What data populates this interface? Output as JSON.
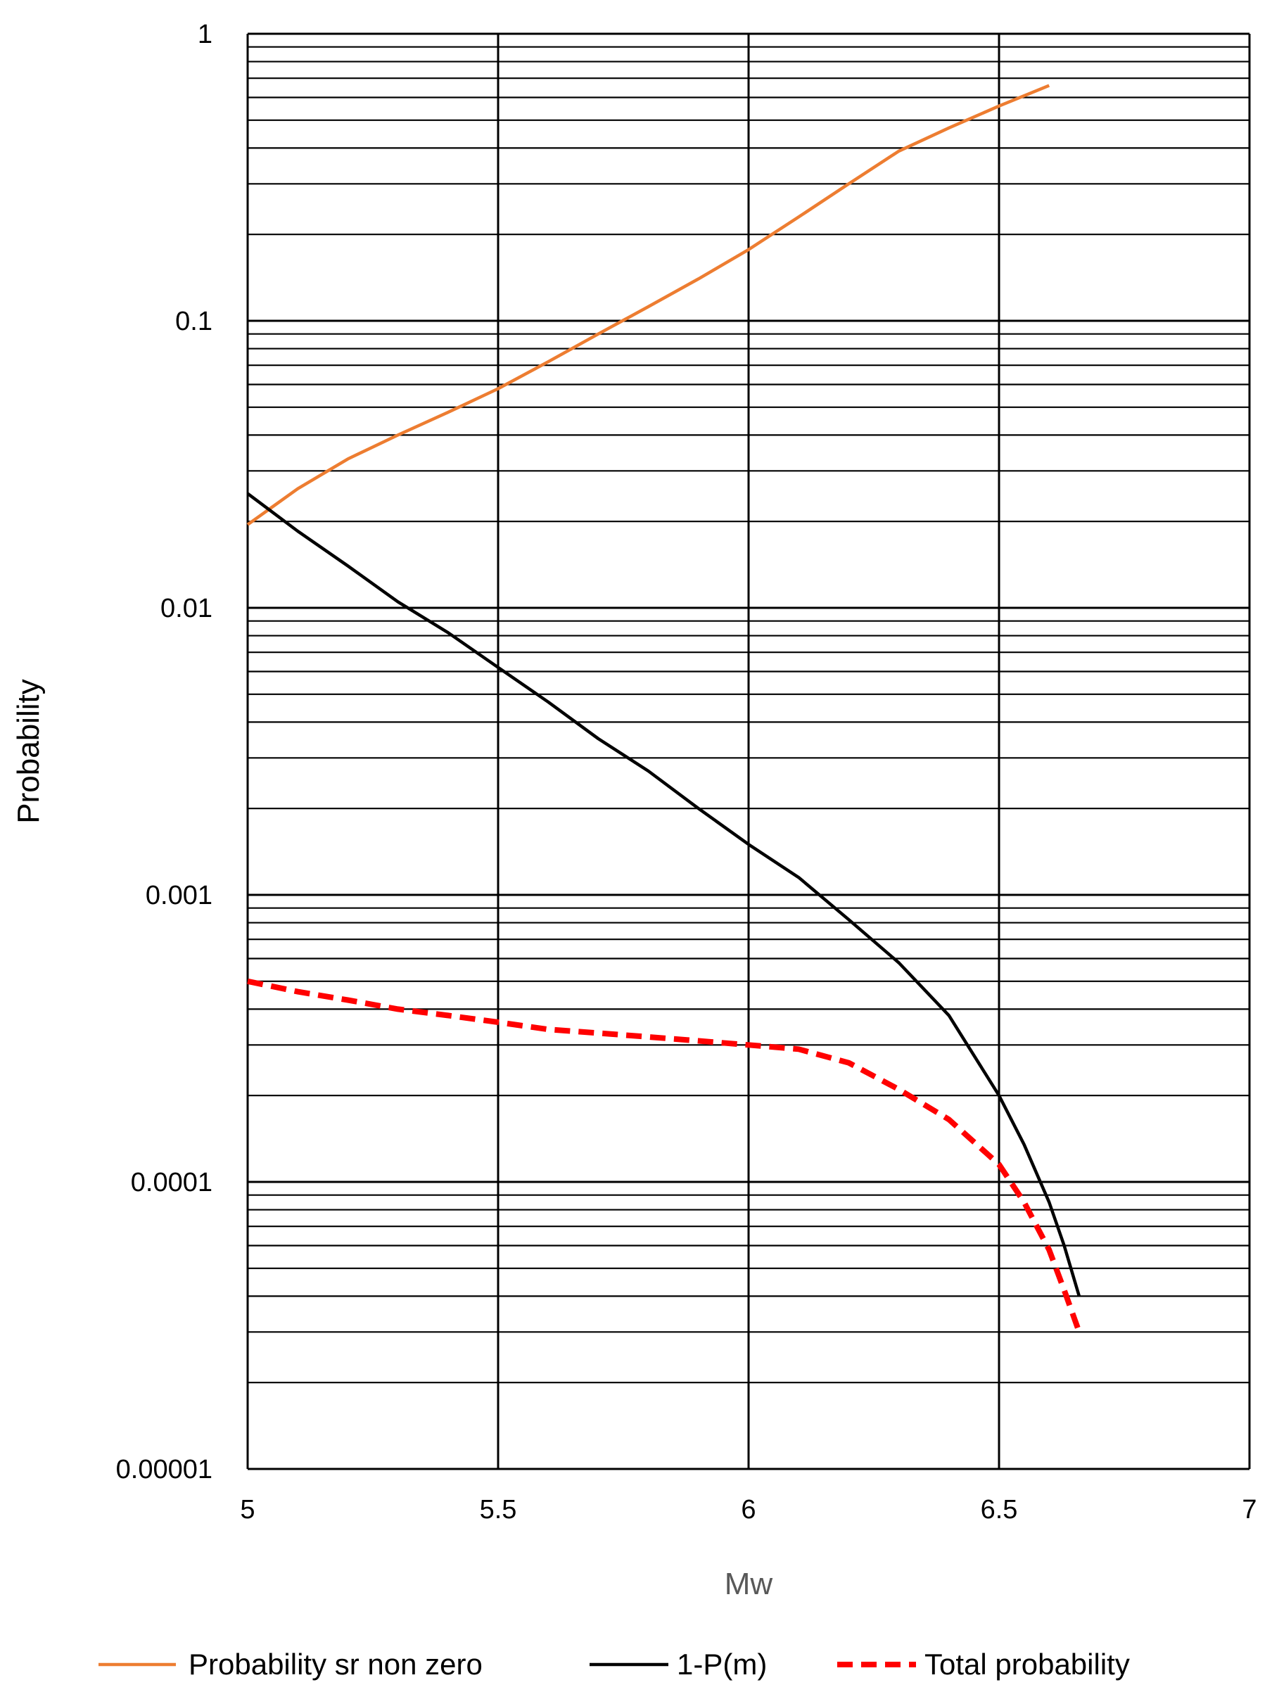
{
  "chart_data": {
    "type": "line",
    "xlabel": "Mw",
    "ylabel": "Probability",
    "xlim": [
      5,
      7
    ],
    "ylim": [
      1e-05,
      1
    ],
    "y_scale": "log",
    "x_ticks": [
      "5",
      "5.5",
      "6",
      "6.5",
      "7"
    ],
    "y_ticks": [
      "1",
      "0.1",
      "0.01",
      "0.001",
      "0.0001",
      "0.00001"
    ],
    "grid": true,
    "legend_position": "bottom",
    "colors": {
      "xlabel": "#595959",
      "ylabel": "#000000",
      "grid": "#000000"
    },
    "series": [
      {
        "name": "Probability sr non zero",
        "color": "#ED7D31",
        "dash": "solid",
        "points": [
          [
            5.0,
            0.0195
          ],
          [
            5.1,
            0.026
          ],
          [
            5.2,
            0.033
          ],
          [
            5.3,
            0.04
          ],
          [
            5.4,
            0.048
          ],
          [
            5.5,
            0.058
          ],
          [
            5.6,
            0.072
          ],
          [
            5.7,
            0.09
          ],
          [
            5.8,
            0.112
          ],
          [
            5.9,
            0.14
          ],
          [
            6.0,
            0.177
          ],
          [
            6.1,
            0.23
          ],
          [
            6.2,
            0.3
          ],
          [
            6.3,
            0.39
          ],
          [
            6.4,
            0.47
          ],
          [
            6.5,
            0.56
          ],
          [
            6.6,
            0.66
          ]
        ]
      },
      {
        "name": "1-P(m)",
        "color": "#000000",
        "dash": "solid",
        "points": [
          [
            5.0,
            0.025
          ],
          [
            5.1,
            0.0185
          ],
          [
            5.2,
            0.014
          ],
          [
            5.3,
            0.0105
          ],
          [
            5.4,
            0.0082
          ],
          [
            5.5,
            0.0062
          ],
          [
            5.6,
            0.0047
          ],
          [
            5.7,
            0.0035
          ],
          [
            5.8,
            0.0027
          ],
          [
            5.9,
            0.002
          ],
          [
            6.0,
            0.0015
          ],
          [
            6.1,
            0.00115
          ],
          [
            6.2,
            0.00082
          ],
          [
            6.3,
            0.00058
          ],
          [
            6.4,
            0.00038
          ],
          [
            6.5,
            0.0002
          ],
          [
            6.55,
            0.000135
          ],
          [
            6.6,
            8.5e-05
          ],
          [
            6.63,
            6e-05
          ],
          [
            6.66,
            4e-05
          ]
        ]
      },
      {
        "name": "Total probability",
        "color": "#FF0000",
        "dash": "dashed",
        "points": [
          [
            5.0,
            0.0005
          ],
          [
            5.1,
            0.00046
          ],
          [
            5.2,
            0.00043
          ],
          [
            5.3,
            0.0004
          ],
          [
            5.4,
            0.00038
          ],
          [
            5.5,
            0.00036
          ],
          [
            5.6,
            0.00034
          ],
          [
            5.7,
            0.00033
          ],
          [
            5.8,
            0.00032
          ],
          [
            5.9,
            0.00031
          ],
          [
            6.0,
            0.0003
          ],
          [
            6.1,
            0.00029
          ],
          [
            6.2,
            0.00026
          ],
          [
            6.3,
            0.00021
          ],
          [
            6.4,
            0.000165
          ],
          [
            6.5,
            0.000115
          ],
          [
            6.55,
            8.5e-05
          ],
          [
            6.6,
            5.8e-05
          ],
          [
            6.63,
            4.2e-05
          ],
          [
            6.66,
            3e-05
          ]
        ]
      }
    ]
  }
}
